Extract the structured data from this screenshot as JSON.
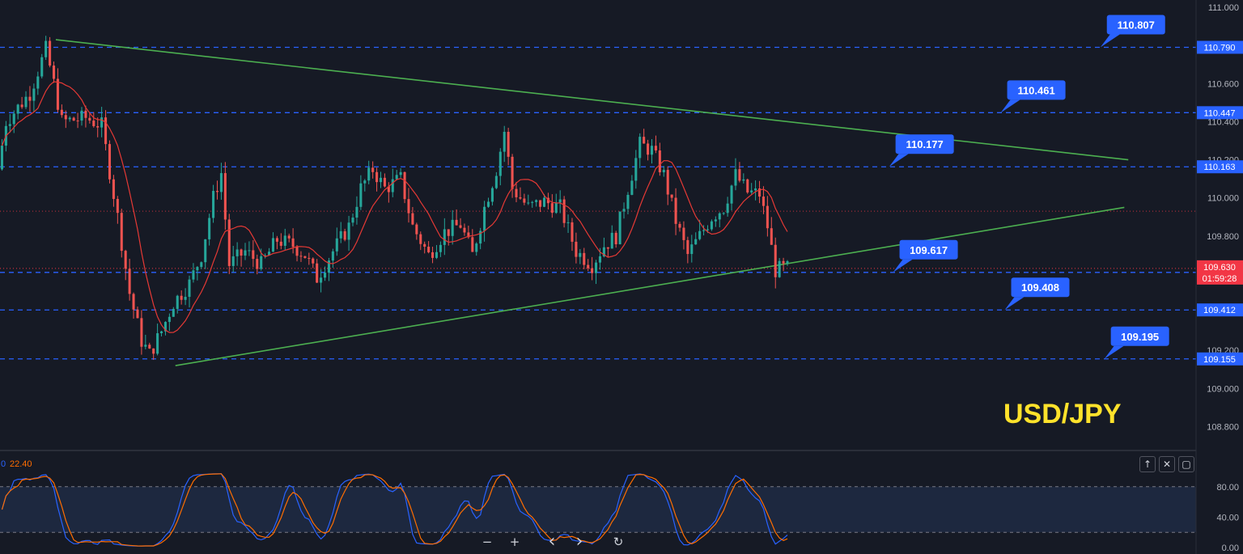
{
  "chart_data": [
    {
      "type": "candlestick",
      "title": "USD/JPY",
      "ylim": [
        108.7,
        111.0
      ],
      "y_ticks": [
        111.0,
        110.6,
        110.4,
        110.2,
        110.0,
        109.8,
        109.2,
        109.0,
        108.8
      ],
      "y_tick_labels": [
        "111.000",
        "110.600",
        "110.400",
        "110.200",
        "110.000",
        "109.800",
        "109.200",
        "109.000",
        "108.800"
      ],
      "current_price": {
        "value": 109.63,
        "label": "109.630",
        "countdown": "01:59:28",
        "color": "#f23645"
      },
      "reference_line": {
        "value": 109.93,
        "color": "#f23645"
      },
      "level_lines": [
        {
          "value": 110.79,
          "label": "110.790"
        },
        {
          "value": 110.447,
          "label": "110.447"
        },
        {
          "value": 110.163,
          "label": "110.163"
        },
        {
          "value": 109.609,
          "label": "109.609"
        },
        {
          "value": 109.412,
          "label": "109.412"
        },
        {
          "value": 109.155,
          "label": "109.155"
        }
      ],
      "callouts": [
        {
          "label": "110.807",
          "value": 110.79,
          "bar": 276
        },
        {
          "label": "110.461",
          "value": 110.447,
          "bar": 251
        },
        {
          "label": "110.177",
          "value": 110.163,
          "bar": 223
        },
        {
          "label": "109.617",
          "value": 109.609,
          "bar": 224
        },
        {
          "label": "109.408",
          "value": 109.412,
          "bar": 252
        },
        {
          "label": "109.195",
          "value": 109.155,
          "bar": 277
        }
      ],
      "trendlines": [
        {
          "name": "upper",
          "x1": 14,
          "y1": 110.83,
          "x2": 283,
          "y2": 110.2,
          "color": "#4caf50"
        },
        {
          "name": "lower",
          "x1": 44,
          "y1": 109.12,
          "x2": 282,
          "y2": 109.95,
          "color": "#4caf50"
        }
      ],
      "moving_average_color": "#e53935",
      "up_color": "#26a69a",
      "down_color": "#ef5350",
      "annotation": "USD/JPY",
      "accent_color": "#2962ff"
    },
    {
      "type": "line",
      "name": "stochastic",
      "ylim": [
        0,
        100
      ],
      "y_ticks": [
        80,
        40,
        0
      ],
      "y_tick_labels": [
        "80.00",
        "40.00",
        "0.00"
      ],
      "bands": [
        80,
        20
      ],
      "values_text": [
        "0",
        "22.40"
      ],
      "series_colors": [
        "#2962ff",
        "#ff6d00"
      ]
    }
  ],
  "toolbar": {
    "zoom_out": "−",
    "zoom_in": "+",
    "scroll_left": "‹",
    "scroll_right": "›",
    "reset": "↻"
  },
  "pane_controls": {
    "move_up": "↑",
    "close": "✕",
    "maximize": "▢"
  }
}
